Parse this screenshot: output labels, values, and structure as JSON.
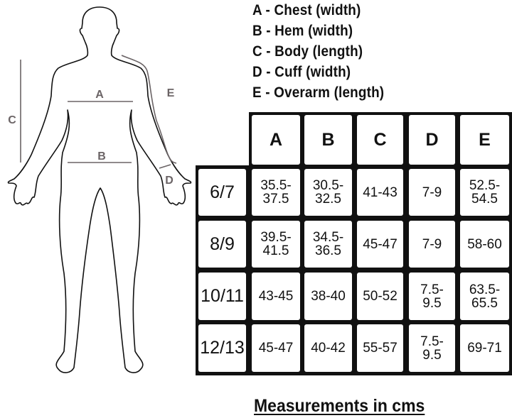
{
  "legend": [
    "A - Chest (width)",
    "B - Hem (width)",
    "C - Body (length)",
    "D - Cuff (width)",
    "E - Overarm (length)"
  ],
  "figure_labels": {
    "A": "A",
    "B": "B",
    "C": "C",
    "D": "D",
    "E": "E"
  },
  "colors": {
    "measure_line": "#6b6466",
    "outline": "#111111",
    "grid": "#111111"
  },
  "table": {
    "columns": [
      "A",
      "B",
      "C",
      "D",
      "E"
    ],
    "rows": [
      {
        "size": "6/7",
        "values": [
          "35.5-\n37.5",
          "30.5-\n32.5",
          "41-43",
          "7-9",
          "52.5-\n54.5"
        ]
      },
      {
        "size": "8/9",
        "values": [
          "39.5-\n41.5",
          "34.5-\n36.5",
          "45-47",
          "7-9",
          "58-60"
        ]
      },
      {
        "size": "10/11",
        "values": [
          "43-45",
          "38-40",
          "50-52",
          "7.5-\n9.5",
          "63.5-\n65.5"
        ]
      },
      {
        "size": "12/13",
        "values": [
          "45-47",
          "40-42",
          "55-57",
          "7.5-\n9.5",
          "69-71"
        ]
      }
    ]
  },
  "footer": "Measurements in cms"
}
